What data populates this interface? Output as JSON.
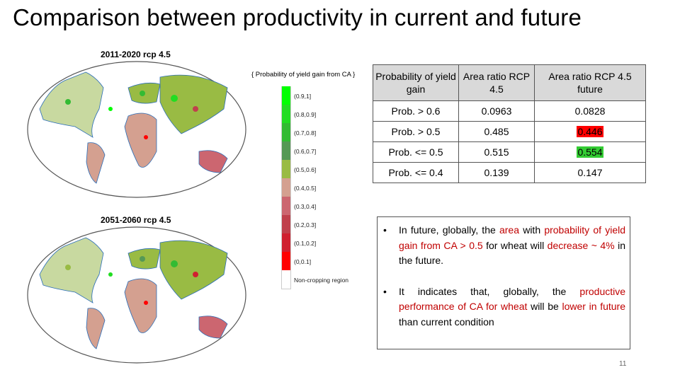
{
  "slide": {
    "title": "Comparison between productivity in current and future",
    "page_number": "11"
  },
  "maps": [
    {
      "label": "2011-2020 rcp 4.5"
    },
    {
      "label": "2051-2060 rcp 4.5"
    }
  ],
  "legend": {
    "title": "{ Probability of yield gain from CA }",
    "items": [
      {
        "label": "(0.9,1]",
        "color": "#00ff00"
      },
      {
        "label": "(0.8,0.9]",
        "color": "#22dd22"
      },
      {
        "label": "(0.7,0.8]",
        "color": "#33bb33"
      },
      {
        "label": "(0.6,0.7]",
        "color": "#559955"
      },
      {
        "label": "(0.5,0.6]",
        "color": "#99bb44"
      },
      {
        "label": "(0.4,0.5]",
        "color": "#d4a090"
      },
      {
        "label": "(0.3,0.4]",
        "color": "#cc6670"
      },
      {
        "label": "(0.2,0.3]",
        "color": "#c0404c"
      },
      {
        "label": "(0.1,0.2]",
        "color": "#d02030"
      },
      {
        "label": "(0,0.1]",
        "color": "#ff0000"
      },
      {
        "label": "Non-cropping region",
        "color": "#ffffff"
      }
    ]
  },
  "table": {
    "headers": [
      "Probability of yield gain",
      "Area ratio RCP 4.5",
      "Area ratio RCP 4.5 future"
    ],
    "rows": [
      [
        "Prob. > 0.6",
        "0.0963",
        "0.0828"
      ],
      [
        "Prob.  > 0.5",
        "0.485",
        "0.446"
      ],
      [
        "Prob.  <= 0.5",
        "0.515",
        "0.554"
      ],
      [
        "Prob.  <= 0.4",
        "0.139",
        "0.147"
      ]
    ],
    "highlight_colors": {
      "red": "#ff0000",
      "green": "#33cc33"
    }
  },
  "bullets": {
    "b1": {
      "p1": "In future, globally, the",
      "p2": "area",
      "p3": "with",
      "p4": "probability of yield gain from CA > 0.5",
      "p5": "for wheat will",
      "p6": "decrease ~ 4%",
      "p7": "in the future."
    },
    "b2": {
      "p1": "It indicates that, globally, the",
      "p2": "productive performance of CA for wheat",
      "p3": "will be",
      "p4": "lower in future",
      "p5": "than current condition"
    }
  }
}
